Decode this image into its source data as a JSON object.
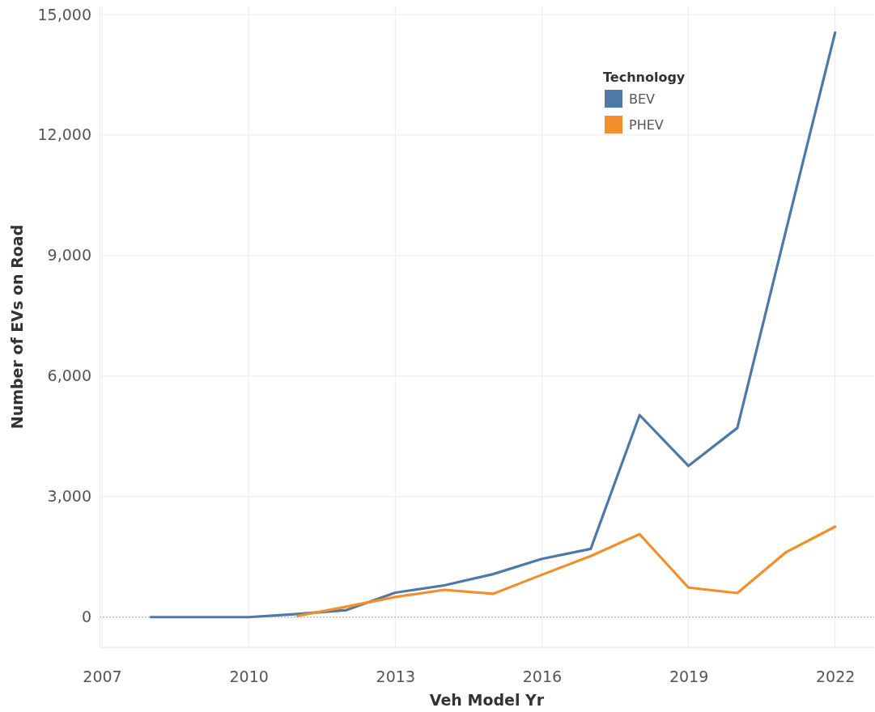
{
  "chart_data": {
    "type": "line",
    "xlabel": "Veh Model Yr",
    "ylabel": "Number of EVs on Road",
    "legend_title": "Technology",
    "legend": "top right",
    "grid": true,
    "xlim": [
      2006.95,
      2022.8
    ],
    "xticks": [
      2007,
      2010,
      2013,
      2016,
      2019,
      2022
    ],
    "ylim": [
      -750,
      15200
    ],
    "yticks": [
      {
        "value": 0,
        "label": "0"
      },
      {
        "value": 3000,
        "label": "3,000"
      },
      {
        "value": 6000,
        "label": "6,000"
      },
      {
        "value": 9000,
        "label": "9,000"
      },
      {
        "value": 12000,
        "label": "12,000"
      },
      {
        "value": 15000,
        "label": "15,000"
      }
    ],
    "ref_lines": [
      {
        "axis": "y",
        "value": 0,
        "label": null,
        "color": "#b0b0b0",
        "line_style": "dotted"
      }
    ],
    "series": [
      {
        "name": "BEV",
        "color": "#4e79a7",
        "x": [
          2008,
          2009,
          2010,
          2011,
          2012,
          2013,
          2014,
          2015,
          2016,
          2017,
          2018,
          2019,
          2020,
          2021,
          2022
        ],
        "values": [
          0,
          0,
          0,
          80,
          175,
          610,
          790,
          1070,
          1450,
          1700,
          5030,
          3765,
          4710,
          9650,
          14550
        ]
      },
      {
        "name": "PHEV",
        "color": "#f28e2b",
        "x": [
          2011,
          2012,
          2013,
          2014,
          2015,
          2016,
          2017,
          2018,
          2019,
          2020,
          2021,
          2022
        ],
        "values": [
          30,
          260,
          500,
          680,
          580,
          1055,
          1520,
          2065,
          735,
          600,
          1620,
          2250
        ]
      }
    ]
  }
}
